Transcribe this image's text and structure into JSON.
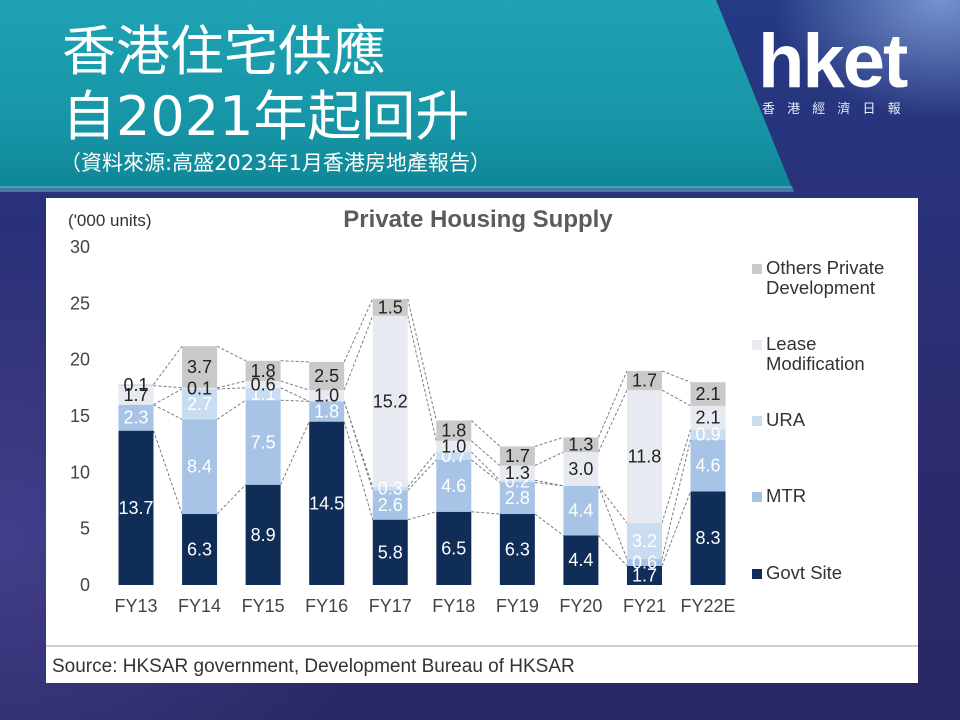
{
  "header": {
    "title_line1": "香港住宅供應",
    "title_line2": "自2021年起回升",
    "source_note": "（資料來源:高盛2023年1月香港房地產報告）"
  },
  "logo": {
    "wordmark": "hket",
    "tagline": "香 港 經 濟 日 報"
  },
  "chart_data": {
    "type": "bar",
    "stacked": true,
    "title": "Private Housing Supply",
    "xlabel": "",
    "ylabel": "('000 units)",
    "ylim": [
      0,
      30
    ],
    "yticks": [
      0,
      5,
      10,
      15,
      20,
      25,
      30
    ],
    "grid": false,
    "legend_position": "right",
    "categories": [
      "FY13",
      "FY14",
      "FY15",
      "FY16",
      "FY17",
      "FY18",
      "FY19",
      "FY20",
      "FY21",
      "FY22E"
    ],
    "series": [
      {
        "name": "Govt Site",
        "color": "#0f2d57",
        "label_color": "#ffffff",
        "values": [
          13.7,
          6.3,
          8.9,
          14.5,
          5.8,
          6.5,
          6.3,
          4.4,
          1.7,
          8.3
        ],
        "labels": [
          "13.7",
          "6.3",
          "8.9",
          "14.5",
          "5.8",
          "6.5",
          "6.3",
          "4.4",
          "1.7",
          "8.3"
        ]
      },
      {
        "name": "MTR",
        "color": "#a7c4e7",
        "label_color": "#ffffff",
        "values": [
          2.3,
          8.4,
          7.5,
          1.8,
          2.6,
          4.6,
          2.8,
          4.4,
          0.6,
          4.6
        ],
        "labels": [
          "2.3",
          "8.4",
          "7.5",
          "1.8",
          "2.6",
          "4.6",
          "2.8",
          "4.4",
          "0.6",
          "4.6"
        ]
      },
      {
        "name": "URA",
        "color": "#c8dcf2",
        "label_color": "#ffffff",
        "values": [
          0,
          2.7,
          1.1,
          0,
          0.3,
          0.7,
          0.2,
          0,
          3.2,
          0.9
        ],
        "labels": [
          null,
          "2.7",
          "1.1",
          null,
          "0.3",
          "0.7",
          "0.2",
          null,
          "3.2",
          "0.9"
        ]
      },
      {
        "name": "Lease Modification",
        "color": "#e7eaf0",
        "label_color": "#222222",
        "values": [
          1.7,
          0.1,
          0.6,
          1.0,
          15.2,
          1.0,
          1.3,
          3.0,
          11.8,
          2.1
        ],
        "labels": [
          "1.7",
          "0.1",
          "0.6",
          "1.0",
          "15.2",
          "1.0",
          "1.3",
          "3.0",
          "11.8",
          "2.1"
        ]
      },
      {
        "name": "Others Private Development",
        "color": "#c9c9c9",
        "label_color": "#222222",
        "values": [
          0.1,
          3.7,
          1.8,
          2.5,
          1.5,
          1.8,
          1.7,
          1.3,
          1.7,
          2.1
        ],
        "labels": [
          "0.1",
          "3.7",
          "1.8",
          "2.5",
          "1.5",
          "1.8",
          "1.7",
          "1.3",
          "1.7",
          "2.1"
        ]
      }
    ],
    "source": "Source: HKSAR government, Development Bureau of HKSAR"
  }
}
